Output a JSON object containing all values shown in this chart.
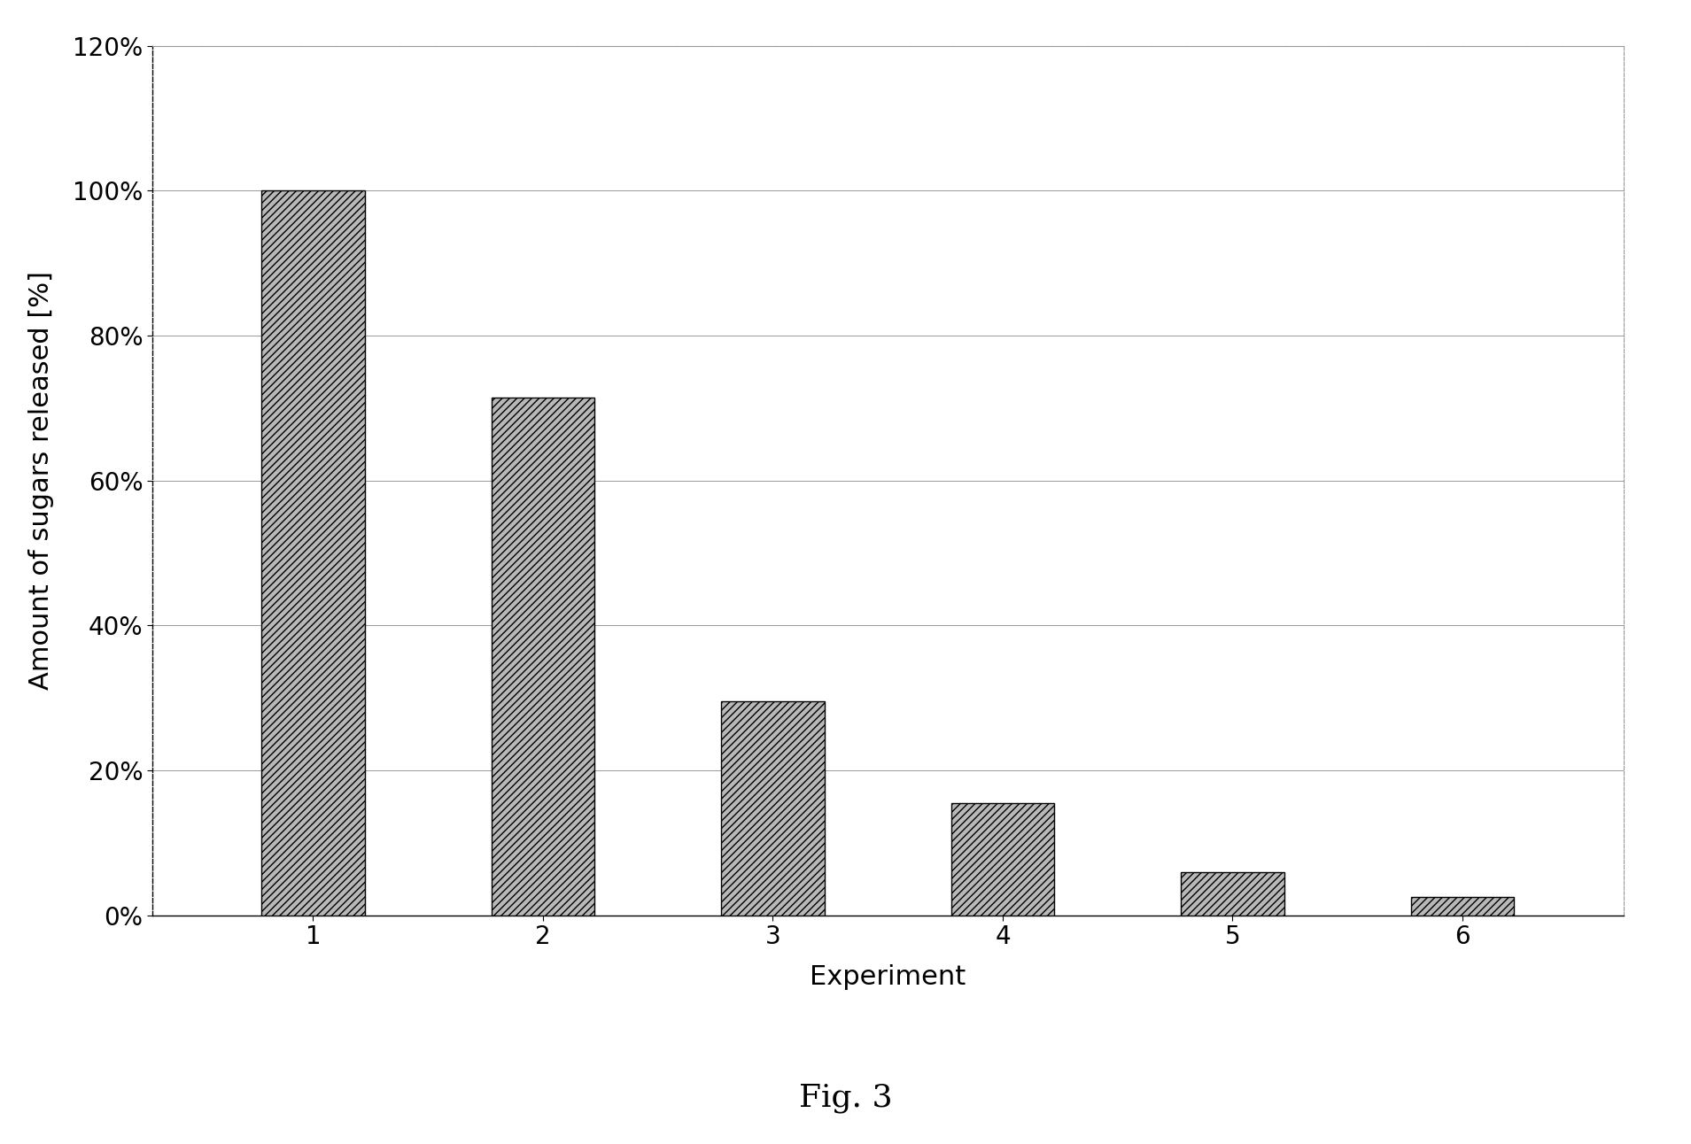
{
  "categories": [
    "1",
    "2",
    "3",
    "4",
    "5",
    "6"
  ],
  "values": [
    1.0,
    0.715,
    0.295,
    0.155,
    0.06,
    0.025
  ],
  "xlabel": "Experiment",
  "ylabel": "Amount of sugars released [%]",
  "ylim": [
    0,
    1.2
  ],
  "yticks": [
    0.0,
    0.2,
    0.4,
    0.6,
    0.8,
    1.0,
    1.2
  ],
  "ytick_labels": [
    "0%",
    "20%",
    "40%",
    "60%",
    "80%",
    "100%",
    "120%"
  ],
  "hatch": "////",
  "background_color": "#ffffff",
  "fig_caption": "Fig. 3",
  "grid_color": "#999999",
  "border_color": "#000000",
  "bar_edge_color": "#000000",
  "bar_face_color": "#b8b8b8",
  "tick_fontsize": 20,
  "label_fontsize": 22,
  "caption_fontsize": 26
}
